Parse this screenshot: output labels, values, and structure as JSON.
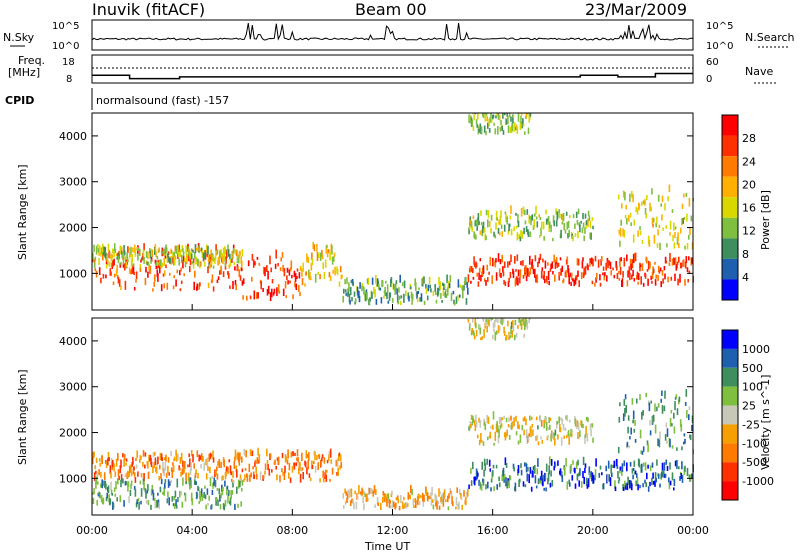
{
  "header": {
    "station": "Inuvik (fitACF)",
    "beam": "Beam 00",
    "date": "23/Mar/2009"
  },
  "top_panels": {
    "nsky_label": "N.Sky",
    "nsearch_label": "N.Search",
    "nsky_ticks": [
      "10^5",
      "10^0"
    ],
    "nsearch_ticks": [
      "10^5",
      "10^0"
    ],
    "freq_label": "Freq.",
    "freq_unit": "[MHz]",
    "freq_ticks": [
      "18",
      "8"
    ],
    "nave_label": "Nave",
    "nave_ticks": [
      "60",
      "0"
    ],
    "cpid_label": "CPID",
    "cpid_text": "normalsound (fast) -157"
  },
  "colors": {
    "power_scale": [
      "#0000ff",
      "#1f5fb0",
      "#3e8e5e",
      "#7fbf3f",
      "#d8d800",
      "#ffb000",
      "#ff7a00",
      "#ff3000",
      "#ff0000"
    ],
    "velocity_scale": [
      "#0000ff",
      "#1f5fb0",
      "#3e8e5e",
      "#7fbf3f",
      "#c8c8b8",
      "#f5a000",
      "#ff7a00",
      "#ff3000",
      "#ff0000"
    ],
    "ground_scatter": "#b4b4b4"
  },
  "chart_data": [
    {
      "type": "line",
      "name": "sky_noise_and_search_noise",
      "title": "",
      "y_ticks_left": [
        "10^5",
        "10^0"
      ],
      "y_ticks_right": [
        "10^5",
        "10^0"
      ],
      "x_range": [
        "00:00",
        "00:00"
      ],
      "series": [
        {
          "name": "N.Sky",
          "note": "near baseline with bursts at 06:00-08:00, 11:00-12:00, 14:00-15:00, 21:00-23:00"
        }
      ]
    },
    {
      "type": "line",
      "name": "frequency_and_nave",
      "y_ticks_left": [
        "18",
        "8"
      ],
      "y_ticks_right": [
        "60",
        "0"
      ],
      "series": [
        {
          "name": "Freq",
          "x_hours": [
            0,
            1.5,
            1.5,
            3.5,
            3.5,
            18,
            18,
            19.5,
            19.5,
            21,
            21,
            22.5,
            22.5,
            24
          ],
          "y_mhz": [
            12,
            12,
            10,
            10,
            11,
            11,
            11,
            11,
            12,
            12,
            11,
            11,
            13,
            13
          ]
        }
      ]
    },
    {
      "type": "heatmap",
      "name": "power",
      "xlabel": "",
      "ylabel": "Slant Range [km]",
      "y_ticks": [
        1000,
        2000,
        3000,
        4000
      ],
      "ylim": [
        200,
        4500
      ],
      "x_range_hours": [
        0,
        24
      ],
      "colorbar_label": "Power [dB]",
      "colorbar_ticks": [
        "4",
        "8",
        "12",
        "16",
        "20",
        "24",
        "28"
      ],
      "regions": [
        {
          "t0": 0.0,
          "t1": 6.0,
          "r0": 600,
          "r1": 1500,
          "level": 0.8
        },
        {
          "t0": 0.0,
          "t1": 6.0,
          "r0": 1100,
          "r1": 1500,
          "level": 0.45
        },
        {
          "t0": 6.0,
          "t1": 8.3,
          "r0": 350,
          "r1": 1350,
          "level": 0.85
        },
        {
          "t0": 8.3,
          "t1": 10.0,
          "r0": 700,
          "r1": 1550,
          "level": 0.55
        },
        {
          "t0": 10.0,
          "t1": 15.0,
          "r0": 300,
          "r1": 800,
          "level": 0.35
        },
        {
          "t0": 15.0,
          "t1": 24.0,
          "r0": 700,
          "r1": 1300,
          "level": 0.85
        },
        {
          "t0": 15.0,
          "t1": 20.0,
          "r0": 1700,
          "r1": 2300,
          "level": 0.4
        },
        {
          "t0": 15.0,
          "t1": 17.5,
          "r0": 4000,
          "r1": 4500,
          "level": 0.4
        },
        {
          "t0": 21.0,
          "t1": 24.0,
          "r0": 1500,
          "r1": 2800,
          "level": 0.5
        }
      ]
    },
    {
      "type": "heatmap",
      "name": "velocity",
      "xlabel": "Time UT",
      "ylabel": "Slant Range [km]",
      "y_ticks": [
        1000,
        2000,
        3000,
        4000
      ],
      "ylim": [
        200,
        4500
      ],
      "x_ticks": [
        "00:00",
        "04:00",
        "08:00",
        "12:00",
        "16:00",
        "20:00",
        "00:00"
      ],
      "colorbar_label": "Velocity [m s^-1]",
      "colorbar_ticks": [
        "1000",
        "500",
        "100",
        "25",
        "-25",
        "-100",
        "-500",
        "-1000"
      ],
      "regions": [
        {
          "t0": 0.0,
          "t1": 6.0,
          "r0": 900,
          "r1": 1500,
          "level": 0.7
        },
        {
          "t0": 0.0,
          "t1": 6.0,
          "r0": 300,
          "r1": 900,
          "level": 0.3
        },
        {
          "t0": 6.0,
          "t1": 10.0,
          "r0": 900,
          "r1": 1500,
          "level": 0.7
        },
        {
          "t0": 10.0,
          "t1": 15.0,
          "r0": 300,
          "r1": 700,
          "level": 0.6
        },
        {
          "t0": 15.0,
          "t1": 24.0,
          "r0": 700,
          "r1": 1300,
          "level": 0.2
        },
        {
          "t0": 15.0,
          "t1": 20.0,
          "r0": 1700,
          "r1": 2300,
          "level": 0.5
        },
        {
          "t0": 15.0,
          "t1": 17.5,
          "r0": 4000,
          "r1": 4500,
          "level": 0.5
        },
        {
          "t0": 21.0,
          "t1": 24.0,
          "r0": 1500,
          "r1": 2800,
          "level": 0.3
        }
      ]
    }
  ]
}
